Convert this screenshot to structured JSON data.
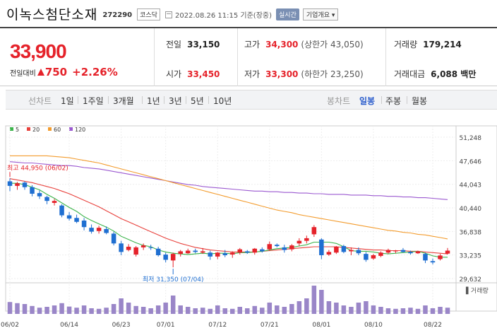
{
  "header": {
    "title": "이녹스첨단소재",
    "code": "272290",
    "market": "코스닥",
    "as_of": "2022.08.26 11:15  기준(장중)",
    "realtime": "실시간",
    "corp_overview": "기업개요 ▾"
  },
  "quote": {
    "price": "33,900",
    "change_label": "전일대비",
    "change": "750",
    "change_pct": "+2.26%",
    "prev_close_label": "전일",
    "prev_close": "33,150",
    "high_label": "고가",
    "high": "34,300",
    "upper_limit": "(상한가 43,050)",
    "volume_label": "거래량",
    "volume": "179,214",
    "open_label": "시가",
    "open": "33,450",
    "low_label": "저가",
    "low": "33,300",
    "lower_limit": "(하한가 23,250)",
    "amount_label": "거래대금",
    "amount": "6,088 백만"
  },
  "tabs": {
    "line_chart": "선차트",
    "periods": [
      "1일",
      "1주일",
      "3개월",
      "1년",
      "3년",
      "5년",
      "10년"
    ],
    "candle_chart": "봉차트",
    "candle_periods": [
      "일봉",
      "주봉",
      "월봉"
    ],
    "active_candle": "일봉"
  },
  "colors": {
    "up": "#e5222a",
    "down": "#1f6fd1",
    "ma5": "#3cb44b",
    "ma20": "#e8413c",
    "ma60": "#f39c2e",
    "ma120": "#9b59d0",
    "volume": "#9a86c8"
  },
  "chart_data": {
    "type": "candlestick",
    "legend": [
      {
        "name": "5",
        "color": "#3cb44b"
      },
      {
        "name": "20",
        "color": "#e8413c"
      },
      {
        "name": "60",
        "color": "#f39c2e"
      },
      {
        "name": "120",
        "color": "#9b59d0"
      }
    ],
    "y_ticks": [
      "51,248",
      "47,646",
      "44,043",
      "40,440",
      "36,838",
      "33,235",
      "29,632"
    ],
    "ylim": [
      29632,
      51248
    ],
    "x_ticks": [
      {
        "label": "06/02",
        "index": 0
      },
      {
        "label": "06/14",
        "index": 8
      },
      {
        "label": "06/23",
        "index": 15
      },
      {
        "label": "07/01",
        "index": 21
      },
      {
        "label": "07/12",
        "index": 28
      },
      {
        "label": "07/21",
        "index": 35
      },
      {
        "label": "08/01",
        "index": 42
      },
      {
        "label": "08/10",
        "index": 49
      },
      {
        "label": "08/22",
        "index": 57
      }
    ],
    "annotations": [
      {
        "text": "최고 44,950 (06/02)",
        "index": 0,
        "value": 44950,
        "kind": "high"
      },
      {
        "text": "최저 31,350 (07/04)",
        "index": 22,
        "value": 31350,
        "kind": "low"
      }
    ],
    "volume_label": "▌거래량",
    "candles": [
      [
        44500,
        44950,
        43000,
        43800
      ],
      [
        43800,
        44400,
        43200,
        44200
      ],
      [
        44300,
        44500,
        43200,
        43600
      ],
      [
        43600,
        43900,
        42200,
        42600
      ],
      [
        42700,
        43100,
        41800,
        42200
      ],
      [
        42100,
        42300,
        41000,
        41500
      ],
      [
        41200,
        41800,
        40800,
        41500
      ],
      [
        40800,
        41000,
        39000,
        39300
      ],
      [
        39300,
        39800,
        38500,
        38800
      ],
      [
        38900,
        39400,
        38100,
        38300
      ],
      [
        38500,
        38900,
        37000,
        37500
      ],
      [
        37400,
        37900,
        36500,
        36800
      ],
      [
        36900,
        37700,
        36500,
        37400
      ],
      [
        37200,
        37600,
        36400,
        36600
      ],
      [
        36500,
        36800,
        34700,
        35000
      ],
      [
        35000,
        35400,
        33200,
        33700
      ],
      [
        34000,
        34900,
        33800,
        34500
      ],
      [
        33300,
        34600,
        33000,
        34400
      ],
      [
        34400,
        35000,
        34000,
        34700
      ],
      [
        34400,
        34800,
        34000,
        34300
      ],
      [
        34200,
        34500,
        33000,
        33200
      ],
      [
        33300,
        33600,
        32100,
        32500
      ],
      [
        32400,
        33600,
        31350,
        33400
      ],
      [
        33400,
        34000,
        33000,
        33800
      ],
      [
        33500,
        34200,
        33400,
        33900
      ],
      [
        33900,
        34200,
        33500,
        33700
      ],
      [
        33600,
        34300,
        33400,
        33800
      ],
      [
        33600,
        33900,
        32500,
        33000
      ],
      [
        33000,
        33700,
        32600,
        33600
      ],
      [
        33500,
        34000,
        32900,
        33200
      ],
      [
        33300,
        33800,
        32800,
        33600
      ],
      [
        33600,
        34300,
        33300,
        34100
      ],
      [
        33800,
        34000,
        33400,
        33600
      ],
      [
        33600,
        34300,
        33300,
        34200
      ],
      [
        34100,
        34400,
        33600,
        33800
      ],
      [
        34100,
        35300,
        33900,
        34900
      ],
      [
        34800,
        35000,
        34400,
        34600
      ],
      [
        34400,
        34800,
        33600,
        34000
      ],
      [
        34100,
        34900,
        33800,
        34700
      ],
      [
        35000,
        35800,
        34600,
        35400
      ],
      [
        35400,
        36200,
        35000,
        35800
      ],
      [
        36400,
        37800,
        36000,
        37500
      ],
      [
        35600,
        35800,
        32600,
        33200
      ],
      [
        33300,
        34000,
        33100,
        33700
      ],
      [
        33600,
        34600,
        33400,
        34500
      ],
      [
        34600,
        34800,
        33500,
        33700
      ],
      [
        33800,
        34400,
        33200,
        34000
      ],
      [
        34000,
        34400,
        33200,
        33500
      ],
      [
        33400,
        33700,
        32200,
        32500
      ],
      [
        32700,
        33400,
        32500,
        33200
      ],
      [
        33100,
        33800,
        32900,
        33600
      ],
      [
        33600,
        34200,
        33400,
        34000
      ],
      [
        33800,
        34000,
        33500,
        33900
      ],
      [
        34000,
        34300,
        33600,
        33700
      ],
      [
        33700,
        33900,
        33300,
        33500
      ],
      [
        33500,
        33900,
        33400,
        33800
      ],
      [
        33400,
        33600,
        32000,
        32400
      ],
      [
        32300,
        32700,
        31800,
        32100
      ],
      [
        32600,
        33400,
        32400,
        33150
      ],
      [
        33450,
        34300,
        33300,
        33900
      ]
    ],
    "ma5": [
      44200,
      44200,
      44000,
      43600,
      43200,
      42500,
      41900,
      41200,
      40500,
      39900,
      39100,
      38500,
      38000,
      37500,
      36900,
      36100,
      35600,
      35100,
      34700,
      34500,
      34000,
      33700,
      33500,
      33400,
      33300,
      33400,
      33500,
      33400,
      33500,
      33500,
      33400,
      33600,
      33600,
      33700,
      33800,
      34000,
      34200,
      34300,
      34400,
      34600,
      34800,
      35200,
      35200,
      35200,
      35000,
      34500,
      33900,
      33800,
      33800,
      33700,
      33500,
      33400,
      33500,
      33600,
      33700,
      33800,
      33500,
      33100,
      32900,
      32900
    ],
    "ma20": [
      44900,
      44700,
      44500,
      44300,
      44000,
      43700,
      43400,
      43000,
      42600,
      42100,
      41600,
      41100,
      40600,
      40000,
      39400,
      38800,
      38300,
      37800,
      37300,
      36800,
      36300,
      35800,
      35400,
      35000,
      34700,
      34400,
      34200,
      34000,
      33900,
      33800,
      33700,
      33700,
      33700,
      33700,
      33800,
      33900,
      34000,
      34100,
      34200,
      34300,
      34400,
      34500,
      34500,
      34500,
      34500,
      34400,
      34300,
      34200,
      34100,
      34000,
      34000,
      33900,
      33900,
      33900,
      33800,
      33800,
      33700,
      33600,
      33500,
      33400
    ],
    "ma60": [
      48400,
      48400,
      48400,
      48400,
      48400,
      48400,
      48300,
      48200,
      48100,
      47900,
      47700,
      47500,
      47300,
      47000,
      46700,
      46400,
      46100,
      45800,
      45500,
      45200,
      44900,
      44600,
      44300,
      44000,
      43700,
      43400,
      43100,
      42800,
      42500,
      42200,
      41900,
      41600,
      41300,
      41000,
      40700,
      40400,
      40100,
      39900,
      39700,
      39400,
      39200,
      39000,
      38800,
      38600,
      38400,
      38200,
      38000,
      37800,
      37600,
      37400,
      37200,
      37000,
      36900,
      36700,
      36600,
      36400,
      36300,
      36100,
      35900,
      35700
    ],
    "ma120": [
      47500,
      47400,
      47300,
      47300,
      47200,
      47100,
      47000,
      46900,
      46900,
      46800,
      46600,
      46500,
      46400,
      46200,
      46000,
      45800,
      45600,
      45400,
      45200,
      45000,
      44800,
      44600,
      44400,
      44200,
      44000,
      43900,
      43700,
      43600,
      43500,
      43400,
      43300,
      43200,
      43100,
      43000,
      43000,
      42900,
      42900,
      42800,
      42800,
      42700,
      42700,
      42600,
      42600,
      42500,
      42500,
      42500,
      42400,
      42400,
      42400,
      42300,
      42300,
      42200,
      42200,
      42100,
      42100,
      42000,
      42000,
      41900,
      41800,
      41700
    ],
    "volume": [
      0.42,
      0.38,
      0.35,
      0.28,
      0.22,
      0.25,
      0.3,
      0.38,
      0.26,
      0.22,
      0.3,
      0.2,
      0.18,
      0.22,
      0.35,
      0.55,
      0.4,
      0.28,
      0.25,
      0.2,
      0.3,
      0.4,
      0.65,
      0.3,
      0.25,
      0.2,
      0.22,
      0.18,
      0.3,
      0.2,
      0.18,
      0.25,
      0.2,
      0.28,
      0.22,
      0.4,
      0.3,
      0.25,
      0.35,
      0.45,
      0.55,
      1.0,
      0.85,
      0.45,
      0.4,
      0.3,
      0.25,
      0.4,
      0.45,
      0.3,
      0.25,
      0.2,
      0.18,
      0.2,
      0.22,
      0.18,
      0.3,
      0.2,
      0.25,
      0.22
    ]
  }
}
